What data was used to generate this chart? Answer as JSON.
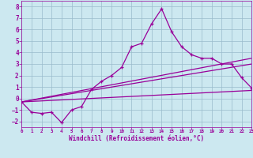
{
  "xlabel": "Windchill (Refroidissement éolien,°C)",
  "bg_color": "#cce8f0",
  "line_color": "#990099",
  "grid_color": "#99bbcc",
  "xlim": [
    0,
    23
  ],
  "ylim": [
    -2.5,
    8.5
  ],
  "xticks": [
    0,
    1,
    2,
    3,
    4,
    5,
    6,
    7,
    8,
    9,
    10,
    11,
    12,
    13,
    14,
    15,
    16,
    17,
    18,
    19,
    20,
    21,
    22,
    23
  ],
  "yticks": [
    -2,
    -1,
    0,
    1,
    2,
    3,
    4,
    5,
    6,
    7,
    8
  ],
  "series1_x": [
    0,
    1,
    2,
    3,
    4,
    5,
    6,
    7,
    8,
    9,
    10,
    11,
    12,
    13,
    14,
    15,
    16,
    17,
    18,
    19,
    20,
    21,
    22,
    23
  ],
  "series1_y": [
    -0.3,
    -1.2,
    -1.3,
    -1.2,
    -2.1,
    -1.0,
    -0.7,
    0.8,
    1.5,
    2.0,
    2.7,
    4.5,
    4.8,
    6.5,
    7.8,
    5.8,
    4.5,
    3.8,
    3.5,
    3.5,
    3.0,
    3.0,
    1.8,
    0.9
  ],
  "series2_x": [
    0,
    23
  ],
  "series2_y": [
    -0.3,
    0.7
  ],
  "series3_x": [
    0,
    23
  ],
  "series3_y": [
    -0.3,
    3.0
  ],
  "series4_x": [
    0,
    23
  ],
  "series4_y": [
    -0.3,
    3.5
  ]
}
